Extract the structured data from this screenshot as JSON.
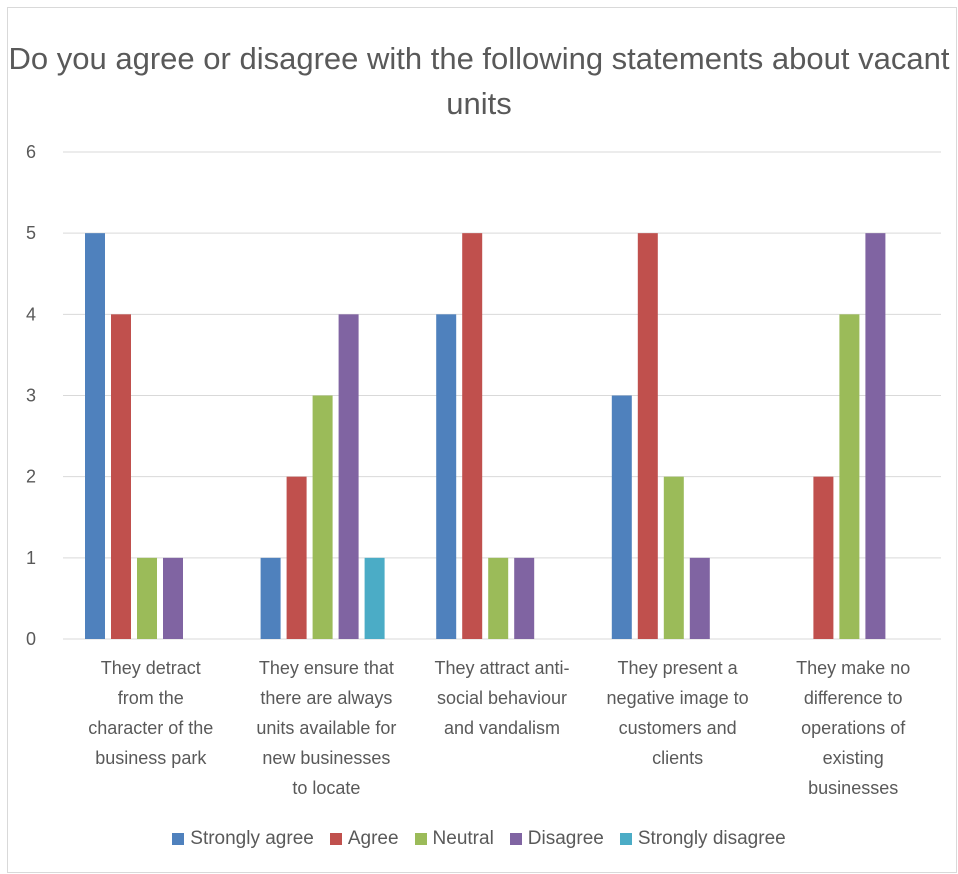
{
  "chart_data": {
    "type": "bar",
    "title": "Do you agree or disagree with the following statements about vacant units",
    "categories": [
      "They detract from the character of the business park",
      "They ensure that there are always units available for new businesses to locate",
      "They attract anti-social behaviour and vandalism",
      "They present a negative image to customers and clients",
      "They make no difference to operations of existing businesses"
    ],
    "category_lines": [
      [
        "They detract",
        "from the",
        "character of the",
        "business park"
      ],
      [
        "They ensure that",
        "there are always",
        "units available for",
        "new businesses",
        "to locate"
      ],
      [
        "They attract anti-",
        "social behaviour",
        "and vandalism"
      ],
      [
        "They present a",
        "negative image to",
        "customers and",
        "clients"
      ],
      [
        "They make no",
        "difference to",
        "operations of",
        "existing",
        "businesses"
      ]
    ],
    "series": [
      {
        "name": "Strongly agree",
        "color": "#4f81bd",
        "values": [
          5,
          1,
          4,
          3,
          0
        ]
      },
      {
        "name": "Agree",
        "color": "#c0504d",
        "values": [
          4,
          2,
          5,
          5,
          2
        ]
      },
      {
        "name": "Neutral",
        "color": "#9bbb59",
        "values": [
          1,
          3,
          1,
          2,
          4
        ]
      },
      {
        "name": "Disagree",
        "color": "#8064a2",
        "values": [
          1,
          4,
          1,
          1,
          5
        ]
      },
      {
        "name": "Strongly disagree",
        "color": "#4bacc6",
        "values": [
          0,
          1,
          0,
          0,
          0
        ]
      }
    ],
    "ylim": [
      0,
      6
    ],
    "yticks": [
      "0",
      "1",
      "2",
      "3",
      "4",
      "5",
      "6"
    ],
    "grid": true,
    "gridline_color": "#d9d9d9",
    "legend_position": "bottom",
    "xlabel": "",
    "ylabel": ""
  }
}
